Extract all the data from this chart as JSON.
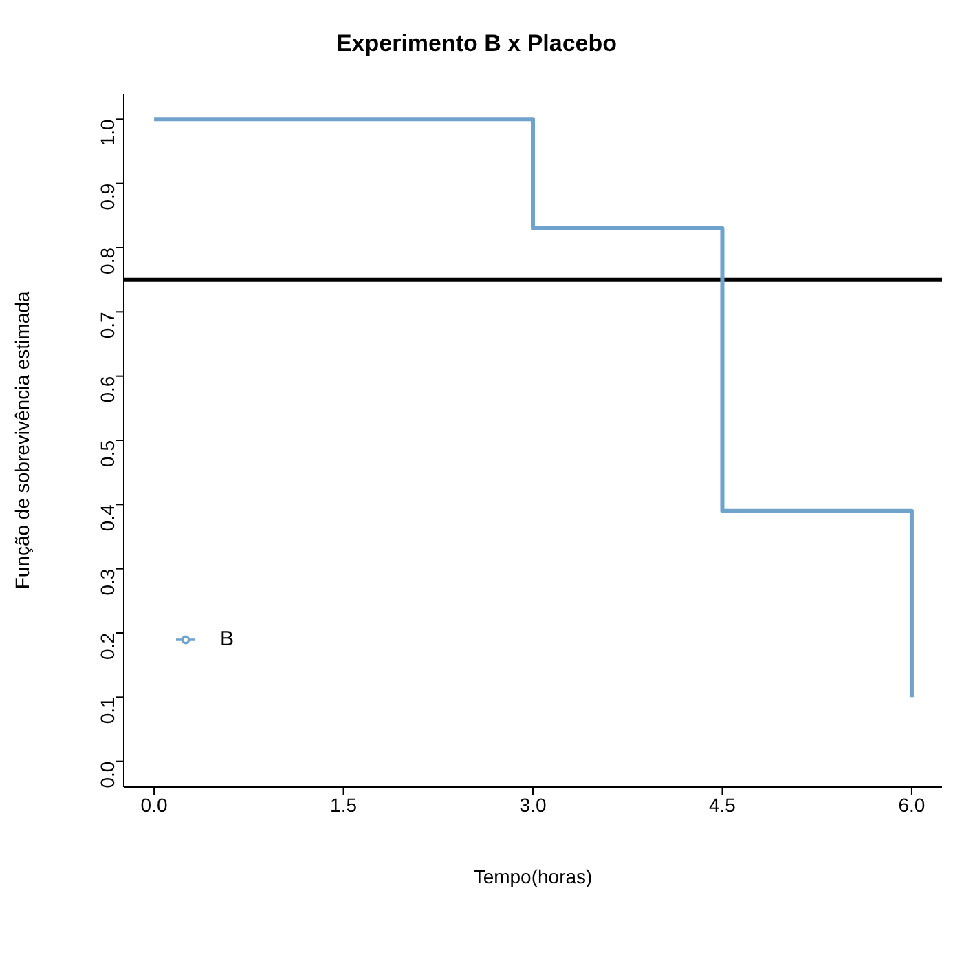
{
  "chart_data": {
    "type": "step",
    "title": "Experimento B x Placebo",
    "xlabel": "Tempo(horas)",
    "ylabel": "Função de sobrevivência estimada",
    "x": [
      0,
      3,
      4.5,
      6
    ],
    "series": [
      {
        "name": "B",
        "color": "#6fa3cc",
        "values": [
          1,
          0.83,
          0.39,
          0.1
        ]
      }
    ],
    "xlim": [
      -0.24,
      6.24
    ],
    "ylim": [
      -0.04,
      1.04
    ],
    "xticks": [
      {
        "value": 0,
        "label": "0.0"
      },
      1.5,
      {
        "value": 3,
        "label": "3.0"
      },
      4.5,
      {
        "value": 6,
        "label": "6.0"
      }
    ],
    "yticks": [
      {
        "value": 0,
        "label": "0.0"
      },
      0.1,
      0.2,
      0.3,
      0.4,
      0.5,
      0.6,
      0.7,
      0.8,
      0.9,
      {
        "value": 1,
        "label": "1.0"
      }
    ],
    "ref_lines": [
      {
        "axis": "y",
        "value": 0.75,
        "color": "#000000"
      }
    ],
    "grid": false,
    "legend": "left",
    "line_style": "solid",
    "marker": "none"
  }
}
